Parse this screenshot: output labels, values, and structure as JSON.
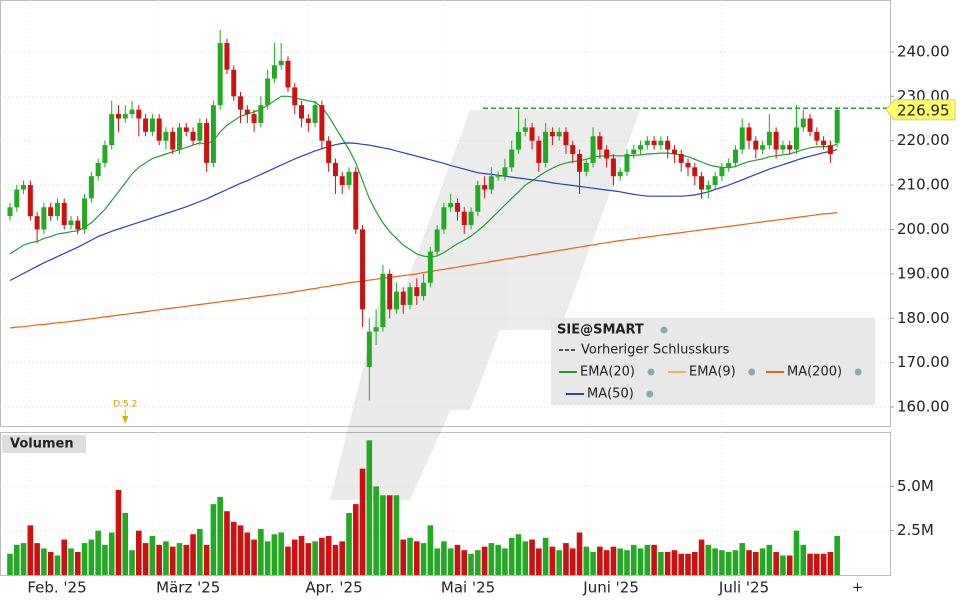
{
  "chart_data": {
    "type": "candlestick",
    "symbol": "SIE@SMART",
    "categories": [
      null,
      null,
      null,
      "Feb. '25",
      null,
      null,
      null,
      null,
      null,
      null,
      null,
      null,
      null,
      null,
      null,
      null,
      null,
      null,
      null,
      null,
      null,
      null,
      "März '25",
      null,
      null,
      null,
      null,
      null,
      null,
      null,
      null,
      null,
      null,
      null,
      null,
      null,
      null,
      null,
      null,
      null,
      null,
      null,
      null,
      null,
      "Apr. '25",
      null,
      null,
      null,
      null,
      null,
      null,
      null,
      null,
      null,
      null,
      null,
      null,
      null,
      null,
      null,
      null,
      null,
      null,
      null,
      "Mai '25",
      null,
      null,
      null,
      null,
      null,
      null,
      null,
      null,
      null,
      null,
      null,
      null,
      null,
      null,
      null,
      null,
      null,
      null,
      null,
      null,
      "Juni '25",
      null,
      null,
      null,
      null,
      null,
      null,
      null,
      null,
      null,
      null,
      null,
      null,
      null,
      null,
      null,
      null,
      null,
      null,
      null,
      "Juli '25",
      null,
      null,
      null,
      null,
      null,
      null,
      null,
      null,
      null,
      null,
      null,
      null,
      null,
      null,
      null,
      null,
      null
    ],
    "candles": {
      "open": [
        203,
        205,
        209,
        210,
        203,
        200,
        205,
        203,
        206,
        201,
        202,
        200,
        207,
        212,
        215,
        219,
        226,
        225,
        226,
        227,
        225,
        222,
        225,
        220,
        222,
        218,
        223,
        222,
        220,
        224,
        215,
        228,
        242,
        236,
        230,
        227,
        226,
        224,
        228,
        234,
        237,
        238,
        232,
        228,
        225,
        224,
        228,
        220,
        215,
        212,
        210,
        213,
        200,
        169,
        177,
        178,
        190,
        182,
        186,
        183,
        187,
        185,
        188,
        195,
        200,
        205,
        206,
        204,
        201,
        204,
        210,
        209,
        212,
        212,
        214,
        218,
        222,
        223,
        220,
        215,
        222,
        221,
        222,
        219,
        217,
        213,
        215,
        221,
        218,
        216,
        212,
        213,
        217,
        218,
        219,
        220,
        219,
        220,
        218,
        217,
        215,
        214,
        212,
        209,
        210,
        212,
        214,
        215,
        218,
        223,
        220,
        218,
        219,
        222,
        218,
        219,
        218,
        223,
        225,
        222,
        220,
        219,
        219.5
      ],
      "high": [
        206,
        210,
        211,
        211,
        204,
        206,
        206,
        207,
        207,
        203,
        203,
        208,
        213,
        216,
        220,
        229,
        228,
        228,
        229,
        228,
        226,
        226,
        226,
        223,
        223,
        224,
        224,
        223,
        225,
        225,
        229,
        245,
        243,
        237,
        231,
        228,
        227,
        230,
        236,
        242,
        242,
        239,
        233,
        229,
        226,
        229,
        229,
        221,
        216,
        213,
        214,
        214,
        201,
        180,
        182,
        192,
        191,
        188,
        187,
        188,
        189,
        190,
        196,
        201,
        206,
        208,
        207,
        205,
        205,
        211,
        212,
        214,
        213,
        216,
        220,
        227,
        225,
        224,
        221,
        224,
        223,
        223,
        223,
        220,
        218,
        216,
        223,
        222,
        219,
        217,
        214,
        218,
        219,
        220,
        221,
        221,
        221,
        221,
        219,
        218,
        216,
        215,
        213,
        211,
        213,
        215,
        216,
        219,
        225,
        224,
        221,
        220,
        226,
        223,
        220,
        220,
        228,
        227,
        226,
        223,
        221,
        220,
        227.5
      ],
      "low": [
        202,
        204,
        208,
        202,
        197,
        199,
        202,
        202,
        200,
        200,
        199,
        199,
        206,
        211,
        214,
        218,
        222,
        224,
        225,
        221,
        221,
        221,
        219,
        218,
        217,
        217,
        221,
        219,
        219,
        213,
        214,
        227,
        235,
        229,
        224,
        224,
        222,
        223,
        227,
        233,
        236,
        231,
        226,
        223,
        222,
        223,
        218,
        213,
        208,
        208,
        209,
        199,
        178,
        161.5,
        174,
        177,
        180,
        181,
        181,
        182,
        183,
        184,
        187,
        194,
        199,
        204,
        202,
        199,
        200,
        203,
        207,
        208,
        211,
        211,
        213,
        217,
        221,
        218,
        213,
        214,
        219,
        220,
        217,
        215,
        208,
        212,
        214,
        216,
        214,
        210,
        211,
        212,
        216,
        217,
        218,
        218,
        218,
        216,
        215,
        213,
        212,
        210,
        207,
        207,
        209,
        211,
        213,
        214,
        217,
        218,
        216,
        217,
        218,
        216,
        217,
        217,
        217,
        222,
        221,
        219,
        218,
        215,
        218.5
      ],
      "close": [
        205,
        209,
        210,
        203,
        200,
        205,
        203,
        206,
        201,
        202,
        200,
        207,
        212,
        215,
        219,
        226,
        225,
        226,
        227,
        225,
        222,
        225,
        220,
        222,
        218,
        223,
        222,
        220,
        224,
        215,
        228,
        242,
        236,
        230,
        227,
        226,
        224,
        228,
        234,
        237,
        238,
        232,
        228,
        225,
        224,
        228,
        220,
        215,
        212,
        210,
        213,
        200,
        182,
        177,
        178,
        190,
        182,
        186,
        183,
        187,
        185,
        188,
        195,
        200,
        205,
        206,
        204,
        201,
        204,
        210,
        209,
        212,
        212,
        214,
        218,
        222,
        223,
        220,
        215,
        222,
        221,
        222,
        219,
        217,
        213,
        215,
        221,
        218,
        216,
        212,
        213,
        217,
        218,
        219,
        220,
        219,
        220,
        218,
        217,
        215,
        214,
        212,
        209,
        210,
        212,
        214,
        215,
        218,
        223,
        220,
        218,
        219,
        222,
        218,
        219,
        218,
        223,
        225,
        222,
        220,
        219,
        217,
        226.95
      ]
    },
    "up_color": "#22aa22",
    "down_color": "#cc1111",
    "series": [
      {
        "name": "EMA(20)",
        "color": "#2a9a3a",
        "values": [
          194.5,
          195.5,
          196.5,
          197.0,
          197.3,
          198.0,
          198.4,
          199.0,
          199.2,
          199.5,
          199.7,
          200.5,
          201.5,
          203.0,
          204.5,
          206.5,
          208.5,
          210.5,
          212.5,
          214.0,
          215.0,
          216.0,
          216.5,
          217.0,
          217.5,
          218.0,
          218.5,
          219.0,
          219.5,
          219.3,
          220.0,
          222.0,
          223.5,
          224.5,
          225.5,
          226.0,
          226.5,
          227.0,
          228.0,
          229.0,
          230.0,
          230.0,
          229.7,
          229.3,
          229.0,
          228.7,
          227.5,
          225.5,
          223.0,
          220.5,
          218.0,
          215.0,
          211.0,
          207.0,
          204.0,
          201.5,
          199.5,
          198.0,
          196.5,
          195.5,
          194.5,
          194.0,
          193.8,
          194.0,
          194.8,
          195.8,
          196.8,
          197.6,
          198.5,
          199.7,
          201.0,
          202.5,
          204.0,
          205.5,
          207.0,
          208.5,
          210.0,
          211.0,
          212.0,
          213.0,
          213.8,
          214.5,
          215.0,
          215.3,
          215.5,
          215.8,
          216.3,
          216.5,
          216.6,
          216.6,
          216.6,
          216.6,
          216.7,
          216.8,
          217.0,
          217.1,
          217.2,
          217.2,
          217.0,
          216.8,
          216.4,
          215.8,
          215.2,
          214.6,
          214.2,
          214.0,
          213.9,
          214.2,
          214.8,
          215.3,
          215.6,
          215.9,
          216.4,
          216.6,
          216.8,
          217.0,
          217.5,
          218.0,
          218.4,
          218.6,
          218.7,
          218.6,
          219.3
        ]
      },
      {
        "name": "EMA(9)",
        "color": "#f0b060"
      },
      {
        "name": "MA(200)",
        "color": "#e8641a",
        "values": [
          177.8,
          178.0,
          178.1,
          178.3,
          178.5,
          178.6,
          178.8,
          179.0,
          179.1,
          179.3,
          179.5,
          179.7,
          179.9,
          180.1,
          180.3,
          180.5,
          180.7,
          180.9,
          181.1,
          181.3,
          181.5,
          181.7,
          181.9,
          182.1,
          182.3,
          182.5,
          182.7,
          182.9,
          183.1,
          183.3,
          183.5,
          183.7,
          183.9,
          184.1,
          184.3,
          184.5,
          184.7,
          184.9,
          185.1,
          185.3,
          185.5,
          185.7,
          186.0,
          186.2,
          186.5,
          186.7,
          187.0,
          187.2,
          187.5,
          187.7,
          188.0,
          188.2,
          188.4,
          188.6,
          188.8,
          189.0,
          189.2,
          189.4,
          189.6,
          189.8,
          190.0,
          190.3,
          190.5,
          190.8,
          191.0,
          191.3,
          191.5,
          191.8,
          192.0,
          192.3,
          192.5,
          192.8,
          193.0,
          193.3,
          193.5,
          193.8,
          194.0,
          194.3,
          194.5,
          194.8,
          195.0,
          195.3,
          195.5,
          195.8,
          196.0,
          196.3,
          196.5,
          196.8,
          197.0,
          197.3,
          197.5,
          197.7,
          197.9,
          198.1,
          198.3,
          198.5,
          198.7,
          198.9,
          199.1,
          199.3,
          199.5,
          199.7,
          199.9,
          200.1,
          200.3,
          200.5,
          200.7,
          200.9,
          201.1,
          201.3,
          201.5,
          201.7,
          201.9,
          202.1,
          202.3,
          202.5,
          202.7,
          202.9,
          203.1,
          203.3,
          203.5,
          203.6,
          203.8
        ]
      },
      {
        "name": "MA(50)",
        "color": "#2a44b0",
        "values": [
          188.5,
          189.3,
          190.1,
          190.9,
          191.7,
          192.5,
          193.2,
          193.9,
          194.6,
          195.3,
          196.0,
          196.8,
          197.6,
          198.4,
          199.0,
          199.6,
          200.1,
          200.6,
          201.1,
          201.6,
          202.1,
          202.6,
          203.1,
          203.6,
          204.1,
          204.6,
          205.1,
          205.7,
          206.3,
          206.9,
          207.6,
          208.3,
          209.0,
          209.7,
          210.4,
          211.0,
          211.7,
          212.4,
          213.1,
          213.8,
          214.5,
          215.2,
          215.9,
          216.5,
          217.1,
          217.7,
          218.2,
          218.7,
          219.1,
          219.4,
          219.5,
          219.4,
          219.2,
          219.0,
          218.7,
          218.4,
          218.1,
          217.7,
          217.3,
          216.9,
          216.5,
          216.1,
          215.7,
          215.3,
          214.9,
          214.4,
          214.0,
          213.6,
          213.2,
          212.8,
          212.6,
          212.4,
          212.2,
          212.0,
          211.8,
          211.6,
          211.4,
          211.2,
          211.0,
          210.8,
          210.5,
          210.3,
          210.1,
          209.9,
          209.7,
          209.5,
          209.3,
          209.1,
          208.9,
          208.7,
          208.5,
          208.2,
          207.9,
          207.7,
          207.5,
          207.5,
          207.5,
          207.5,
          207.5,
          207.5,
          207.6,
          207.8,
          208.1,
          208.5,
          209.0,
          209.5,
          210.0,
          210.6,
          211.2,
          211.8,
          212.4,
          213.0,
          213.6,
          214.1,
          214.6,
          215.1,
          215.6,
          216.1,
          216.5,
          216.9,
          217.3,
          217.6,
          218.0
        ]
      }
    ],
    "reference_line": {
      "name": "Vorheriger Schlusskurs",
      "value": 227.3,
      "color": "#2a9a3a"
    },
    "ylim": [
      155.5,
      251.7
    ],
    "yticks": [
      {
        "value": 160,
        "label": "160.00"
      },
      {
        "value": 170,
        "label": "170.00"
      },
      {
        "value": 180,
        "label": "180.00"
      },
      {
        "value": 190,
        "label": "190.00"
      },
      {
        "value": 200,
        "label": "200.00"
      },
      {
        "value": 210,
        "label": "210.00"
      },
      {
        "value": 220,
        "label": "220.00"
      },
      {
        "value": 230,
        "label": "230.00"
      },
      {
        "value": 240,
        "label": "240.00"
      }
    ],
    "grid": true,
    "annotations": [
      {
        "text": "D.5.2",
        "index": 17
      }
    ],
    "volume": {
      "title": "Volumen",
      "values": [
        1.2,
        1.7,
        1.8,
        2.8,
        1.8,
        1.5,
        1.3,
        1.1,
        2.0,
        1.5,
        1.3,
        1.8,
        2.0,
        2.5,
        1.7,
        2.4,
        4.8,
        3.5,
        1.4,
        2.5,
        1.8,
        2.2,
        1.7,
        1.9,
        1.6,
        1.8,
        1.7,
        2.3,
        2.6,
        1.7,
        4.0,
        4.4,
        3.6,
        3.0,
        2.8,
        2.4,
        2.0,
        2.6,
        1.9,
        2.3,
        2.4,
        1.6,
        2.0,
        2.2,
        1.8,
        1.9,
        2.1,
        2.2,
        1.7,
        1.9,
        3.5,
        4.0,
        6.0,
        7.6,
        5.0,
        4.5,
        4.5,
        4.5,
        2.0,
        2.1,
        1.9,
        1.8,
        2.8,
        1.5,
        1.9,
        1.5,
        1.7,
        1.4,
        1.2,
        1.4,
        1.6,
        1.8,
        1.7,
        1.5,
        2.1,
        2.3,
        1.9,
        2.0,
        1.5,
        2.1,
        1.6,
        1.4,
        1.8,
        1.5,
        2.4,
        1.6,
        1.3,
        1.6,
        1.4,
        1.6,
        1.5,
        1.4,
        1.7,
        1.5,
        1.7,
        1.7,
        1.3,
        1.3,
        1.4,
        1.2,
        1.2,
        1.3,
        2.0,
        1.7,
        1.5,
        1.4,
        1.3,
        1.4,
        1.8,
        1.4,
        1.3,
        1.5,
        1.7,
        1.3,
        1.1,
        1.1,
        2.5,
        1.7,
        1.2,
        1.2,
        1.2,
        1.3,
        2.2
      ],
      "ylim": [
        0,
        8.07
      ],
      "yticks": [
        {
          "value": 2.5,
          "label": "2.5M"
        },
        {
          "value": 5,
          "label": "5.0M"
        }
      ]
    }
  }
}
